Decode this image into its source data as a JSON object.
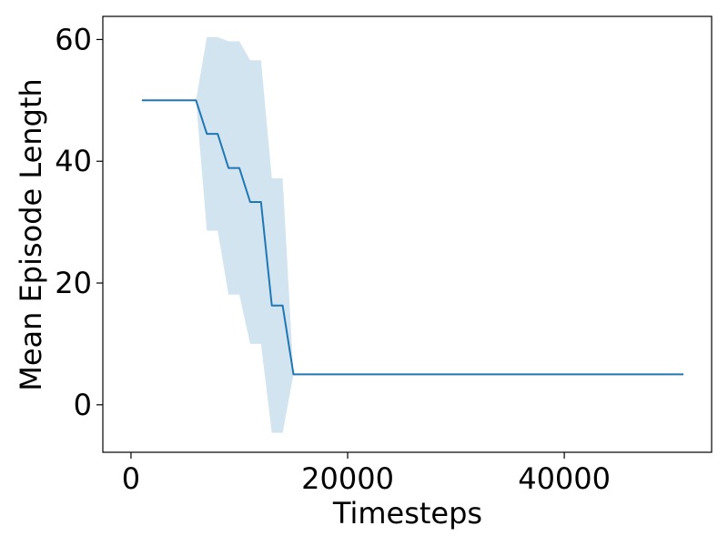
{
  "chart_data": {
    "type": "line",
    "xlabel": "Timesteps",
    "ylabel": "Mean Episode Length",
    "xlim": [
      -2600,
      53600
    ],
    "ylim": [
      -7.8,
      63.8
    ],
    "xticks": [
      0,
      20000,
      40000
    ],
    "xtick_labels": [
      "0",
      "20000",
      "40000"
    ],
    "yticks": [
      0,
      20,
      40,
      60
    ],
    "ytick_labels": [
      "0",
      "20",
      "40",
      "60"
    ],
    "grid": false,
    "colors": {
      "line": "#1f77b4",
      "band": "#1f77b4",
      "axes": "#000000"
    },
    "series": [
      {
        "x": [
          1000,
          2000,
          3000,
          4000,
          5000,
          6000,
          7000,
          8000,
          9000,
          10000,
          11000,
          12000,
          13000,
          14000,
          15000,
          16000,
          17000,
          18000,
          19000,
          20000,
          21000,
          22000,
          23000,
          24000,
          25000,
          26000,
          27000,
          28000,
          29000,
          30000,
          31000,
          32000,
          33000,
          34000,
          35000,
          36000,
          37000,
          38000,
          39000,
          40000,
          41000,
          42000,
          43000,
          44000,
          45000,
          46000,
          47000,
          48000,
          49000,
          50000,
          51000
        ],
        "y": [
          50,
          50,
          50,
          50,
          50,
          50,
          44.5,
          44.5,
          38.9,
          38.9,
          33.3,
          33.3,
          16.3,
          16.3,
          5,
          5,
          5,
          5,
          5,
          5,
          5,
          5,
          5,
          5,
          5,
          5,
          5,
          5,
          5,
          5,
          5,
          5,
          5,
          5,
          5,
          5,
          5,
          5,
          5,
          5,
          5,
          5,
          5,
          5,
          5,
          5,
          5,
          5,
          5,
          5,
          5
        ],
        "upper": [
          50,
          50,
          50,
          50,
          50,
          50,
          60.4,
          60.4,
          59.7,
          59.7,
          56.6,
          56.6,
          37.2,
          37.2,
          5,
          5,
          5,
          5,
          5,
          5,
          5,
          5,
          5,
          5,
          5,
          5,
          5,
          5,
          5,
          5,
          5,
          5,
          5,
          5,
          5,
          5,
          5,
          5,
          5,
          5,
          5,
          5,
          5,
          5,
          5,
          5,
          5,
          5,
          5,
          5,
          5
        ],
        "lower": [
          50,
          50,
          50,
          50,
          50,
          50,
          28.6,
          28.6,
          18.1,
          18.1,
          10,
          10,
          -4.6,
          -4.6,
          5,
          5,
          5,
          5,
          5,
          5,
          5,
          5,
          5,
          5,
          5,
          5,
          5,
          5,
          5,
          5,
          5,
          5,
          5,
          5,
          5,
          5,
          5,
          5,
          5,
          5,
          5,
          5,
          5,
          5,
          5,
          5,
          5,
          5,
          5,
          5,
          5
        ]
      }
    ]
  }
}
